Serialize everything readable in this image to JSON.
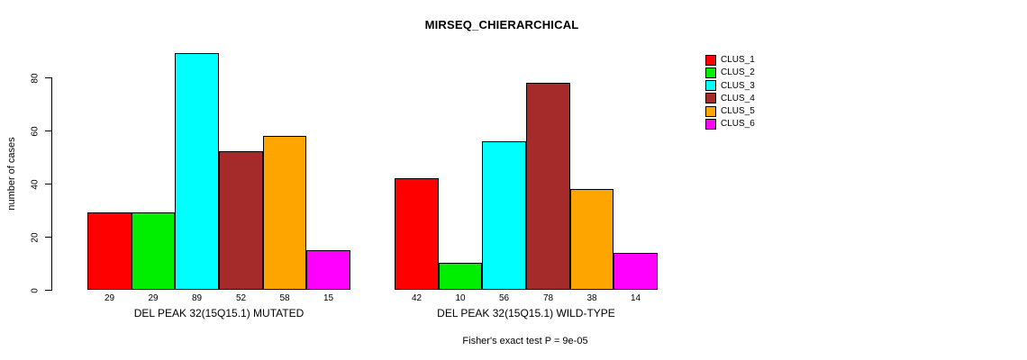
{
  "title": "MIRSEQ_CHIERARCHICAL",
  "footnote": "Fisher's exact test P = 9e-05",
  "chart_data": {
    "type": "bar",
    "title": "MIRSEQ_CHIERARCHICAL",
    "xlabel": "",
    "ylabel": "number of cases",
    "y_ticks": [
      0,
      20,
      40,
      60,
      80
    ],
    "ylim": [
      0,
      89
    ],
    "grid": false,
    "legend_position": "right",
    "value_labels_shown": true,
    "groups": [
      {
        "label": "DEL PEAK 32(15Q15.1) MUTATED"
      },
      {
        "label": "DEL PEAK 32(15Q15.1) WILD-TYPE"
      }
    ],
    "series": [
      {
        "name": "CLUS_1",
        "color": "#FF0000",
        "values": [
          29,
          42
        ]
      },
      {
        "name": "CLUS_2",
        "color": "#00EE00",
        "values": [
          29,
          10
        ]
      },
      {
        "name": "CLUS_3",
        "color": "#00FFFF",
        "values": [
          89,
          56
        ]
      },
      {
        "name": "CLUS_4",
        "color": "#A52A2A",
        "values": [
          52,
          78
        ]
      },
      {
        "name": "CLUS_5",
        "color": "#FFA500",
        "values": [
          58,
          38
        ]
      },
      {
        "name": "CLUS_6",
        "color": "#FF00FF",
        "values": [
          15,
          14
        ]
      }
    ],
    "annotation": "Fisher's exact test P = 9e-05"
  }
}
